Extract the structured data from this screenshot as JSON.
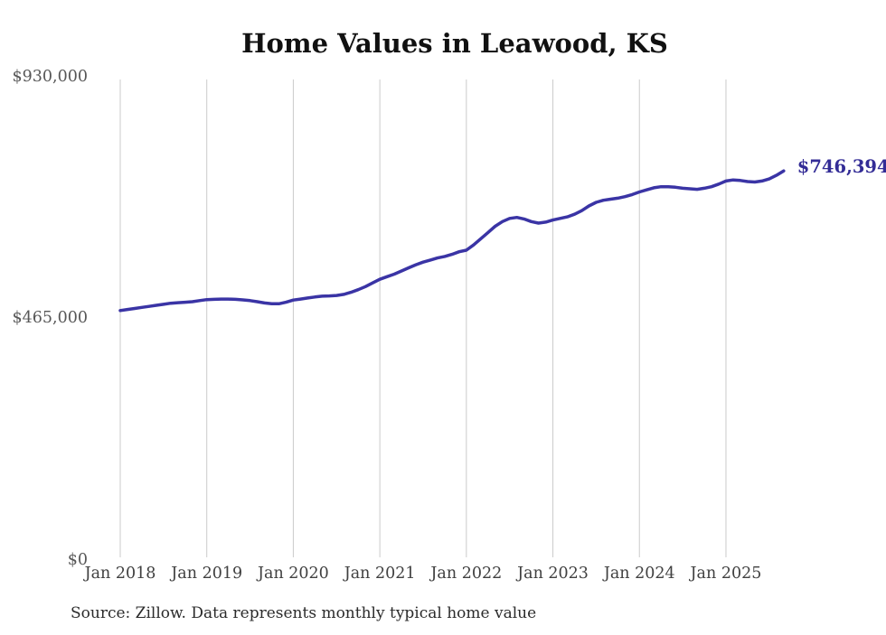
{
  "title": "Home Values in Leawood, KS",
  "source_note": "Source: Zillow. Data represents monthly typical home value",
  "colors": {
    "line": "#3a34a5",
    "end_label": "#332c96",
    "grid": "#cbcbcb",
    "title": "#111111",
    "y_axis_text": "#575757",
    "x_axis_text": "#404040",
    "source_text": "#2b2b2b",
    "background": "#ffffff"
  },
  "chart_data": {
    "type": "line",
    "title": "Home Values in Leawood, KS",
    "xlabel": "",
    "ylabel": "",
    "ylim": [
      0,
      930000
    ],
    "grid": "vertical-only",
    "legend": "none",
    "x_start_month": "2018-01",
    "x_end_month": "2025-09",
    "x_interval": "monthly",
    "categories": [
      "Jan 2018",
      "Jan 2019",
      "Jan 2020",
      "Jan 2021",
      "Jan 2022",
      "Jan 2023",
      "Jan 2024",
      "Jan 2025"
    ],
    "y_ticks": [
      {
        "label": "$930,000",
        "value": 930000
      },
      {
        "label": "$465,000",
        "value": 465000
      },
      {
        "label": "$0",
        "value": 0
      }
    ],
    "series": [
      {
        "name": "Monthly typical home value",
        "final_value": 746394,
        "final_label": "$746,394",
        "values": [
          478000,
          480000,
          482000,
          484000,
          486000,
          488000,
          490000,
          492000,
          493000,
          494000,
          495000,
          497000,
          499000,
          499500,
          500000,
          500000,
          499500,
          498500,
          497000,
          495000,
          492500,
          491000,
          491000,
          494000,
          498000,
          500000,
          502000,
          504000,
          505500,
          506000,
          507000,
          509000,
          513000,
          518000,
          524000,
          531000,
          538000,
          543000,
          548000,
          554000,
          560000,
          566000,
          571000,
          575000,
          579000,
          582000,
          586000,
          591000,
          594000,
          604000,
          616000,
          628000,
          640000,
          649000,
          655000,
          657000,
          654000,
          649000,
          646000,
          648000,
          652000,
          655000,
          658000,
          663000,
          670000,
          679000,
          686000,
          690000,
          692000,
          694000,
          697000,
          701000,
          706000,
          710000,
          714000,
          716000,
          716000,
          715000,
          713000,
          712000,
          711000,
          713000,
          716000,
          721000,
          727000,
          729000,
          728000,
          726000,
          725000,
          727000,
          731000,
          738000,
          746394
        ]
      }
    ]
  }
}
